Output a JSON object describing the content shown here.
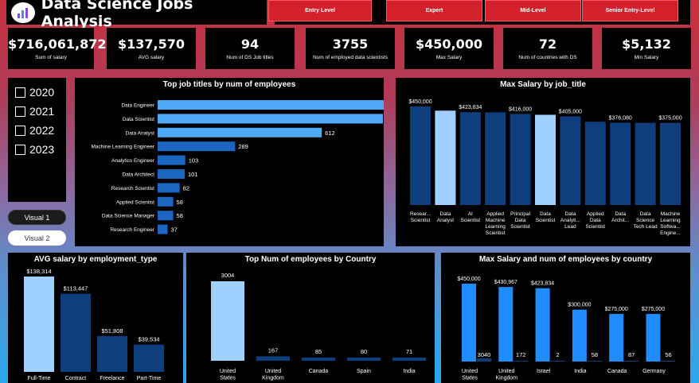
{
  "header": {
    "title": "Data Science Jobs Analysis",
    "levels": [
      "Entry Level",
      "Expert",
      "Mid-Level",
      "Senior Entry-Level"
    ]
  },
  "kpis": [
    {
      "value": "$716,061,872",
      "label": "Sum of salary"
    },
    {
      "value": "$137,570",
      "label": "AVG salary"
    },
    {
      "value": "94",
      "label": "Num of DS Job titles"
    },
    {
      "value": "3755",
      "label": "Num of employed data scientists"
    },
    {
      "value": "$450,000",
      "label": "Max Salary"
    },
    {
      "value": "72",
      "label": "Num of countries with DS"
    },
    {
      "value": "$5,132",
      "label": "Min Salary"
    }
  ],
  "years": [
    "2020",
    "2021",
    "2022",
    "2023"
  ],
  "visual_buttons": [
    "Visual 1",
    "Visual 2"
  ],
  "colors": {
    "dark_blue": "#0e3e7c",
    "mid_blue": "#2170c8",
    "light_blue": "#9fd0ff",
    "bright_blue": "#1f8cff",
    "red": "#d4202a"
  },
  "chart_data": [
    {
      "type": "bar",
      "orientation": "horizontal",
      "title": "Top job titles by num of employees",
      "categories": [
        "Data Engineer",
        "Data Scientist",
        "Data Analyst",
        "Machine Learning Engineer",
        "Analytics Engineer",
        "Data Architect",
        "Research Scientist",
        "Applied Scientist",
        "Data Science Manager",
        "Research Engineer"
      ],
      "values": [
        1039,
        840,
        612,
        289,
        103,
        101,
        82,
        58,
        58,
        37
      ],
      "value_labels": [
        "1039",
        "840",
        "612",
        "289",
        "103",
        "101",
        "82",
        "58",
        "58",
        "37"
      ]
    },
    {
      "type": "bar",
      "title": "Max Salary by job_title",
      "categories": [
        "Resear... Scientist",
        "Data Analyst",
        "AI Scientist",
        "Applied Machine Learning Scientist",
        "Principal Data Scientist",
        "Data Scientist",
        "Data Analyti... Lead",
        "Applied Data Scientist",
        "Data Archit...",
        "Data Science Tech Lead",
        "Machine Learning Softwa... Engine..."
      ],
      "values": [
        450000,
        430967,
        423834,
        423000,
        416000,
        412000,
        405000,
        380000,
        376080,
        375000,
        375000
      ],
      "value_labels": [
        "$450,000",
        "",
        "$423,834",
        "",
        "$416,000",
        "",
        "$405,000",
        "",
        "$376,080",
        "",
        "$375,000"
      ],
      "ylim": [
        0,
        450000
      ]
    },
    {
      "type": "bar",
      "title": "AVG salary by employment_type",
      "categories": [
        "Full-Time",
        "Contract",
        "Freelance",
        "Part-Time"
      ],
      "values": [
        138314,
        113447,
        51808,
        39534
      ],
      "value_labels": [
        "$138,314",
        "$113,447",
        "$51,808",
        "$39,534"
      ]
    },
    {
      "type": "bar",
      "title": "Top Num of employees by Country",
      "categories": [
        "United States",
        "United Kingdom",
        "Canada",
        "Spain",
        "India"
      ],
      "values": [
        3004,
        167,
        85,
        80,
        71
      ],
      "value_labels": [
        "3004",
        "167",
        "85",
        "80",
        "71"
      ]
    },
    {
      "type": "bar",
      "title": "Max Salary and num of employees by country",
      "categories": [
        "United States",
        "United Kingdom",
        "Israel",
        "India",
        "Canada",
        "Germany"
      ],
      "series": [
        {
          "values": [
            450000,
            430967,
            423834,
            300000,
            275000,
            275000
          ],
          "labels": [
            "$450,000",
            "$430,967",
            "$423,834",
            "$300,000",
            "$275,000",
            "$275,000"
          ]
        },
        {
          "values": [
            3040,
            172,
            2,
            58,
            87,
            56
          ],
          "labels": [
            "3040",
            "172",
            "2",
            "58",
            "87",
            "56"
          ]
        }
      ]
    }
  ]
}
